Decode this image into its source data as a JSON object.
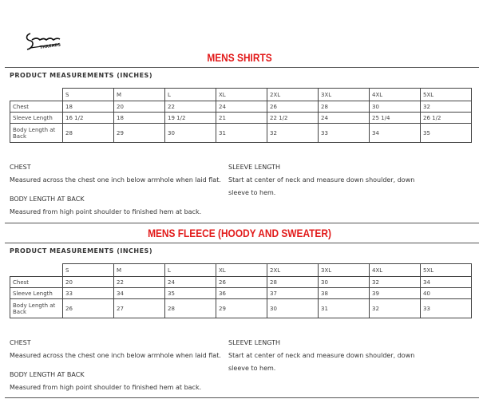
{
  "logo": "Sneaker Threads",
  "sections": [
    {
      "title": "MENS SHIRTS",
      "subtitle": "PRODUCT MEASUREMENTS (INCHES)",
      "sizes": [
        "S",
        "M",
        "L",
        "XL",
        "2XL",
        "3XL",
        "4XL",
        "5XL"
      ],
      "rows": [
        {
          "label": "Chest",
          "values": [
            "18",
            "20",
            "22",
            "24",
            "26",
            "28",
            "30",
            "32"
          ]
        },
        {
          "label": "Sleeve Length",
          "values": [
            "16 1/2",
            "18",
            "19 1/2",
            "21",
            "22 1/2",
            "24",
            "25 1/4",
            "26 1/2"
          ]
        },
        {
          "label": "Body Length at Back",
          "values": [
            "28",
            "29",
            "30",
            "31",
            "32",
            "33",
            "34",
            "35"
          ]
        }
      ],
      "chest_heading": "CHEST",
      "chest_text": "Measured across the chest one inch below armhole when laid flat.",
      "body_heading": "BODY LENGTH AT BACK",
      "body_text": "Measured from high point shoulder to finished hem at back.",
      "sleeve_heading": "SLEEVE LENGTH",
      "sleeve_text": "Start at center of neck and measure down shoulder, down sleeve to hem."
    },
    {
      "title": "MENS FLEECE (HOODY AND SWEATER)",
      "subtitle": "PRODUCT MEASUREMENTS (INCHES)",
      "sizes": [
        "S",
        "M",
        "L",
        "XL",
        "2XL",
        "3XL",
        "4XL",
        "5XL"
      ],
      "rows": [
        {
          "label": "Chest",
          "values": [
            "20",
            "22",
            "24",
            "26",
            "28",
            "30",
            "32",
            "34"
          ]
        },
        {
          "label": "Sleeve Length",
          "values": [
            "33",
            "34",
            "35",
            "36",
            "37",
            "38",
            "39",
            "40"
          ]
        },
        {
          "label": "Body Length at Back",
          "values": [
            "26",
            "27",
            "28",
            "29",
            "30",
            "31",
            "32",
            "33"
          ]
        }
      ],
      "chest_heading": "CHEST",
      "chest_text": "Measured across the chest one inch below armhole when laid flat.",
      "body_heading": "BODY LENGTH AT BACK",
      "body_text": "Measured from high point shoulder to finished hem at back.",
      "sleeve_heading": "SLEEVE LENGTH",
      "sleeve_text": "Start at center of neck and measure down shoulder, down sleeve to hem."
    }
  ]
}
